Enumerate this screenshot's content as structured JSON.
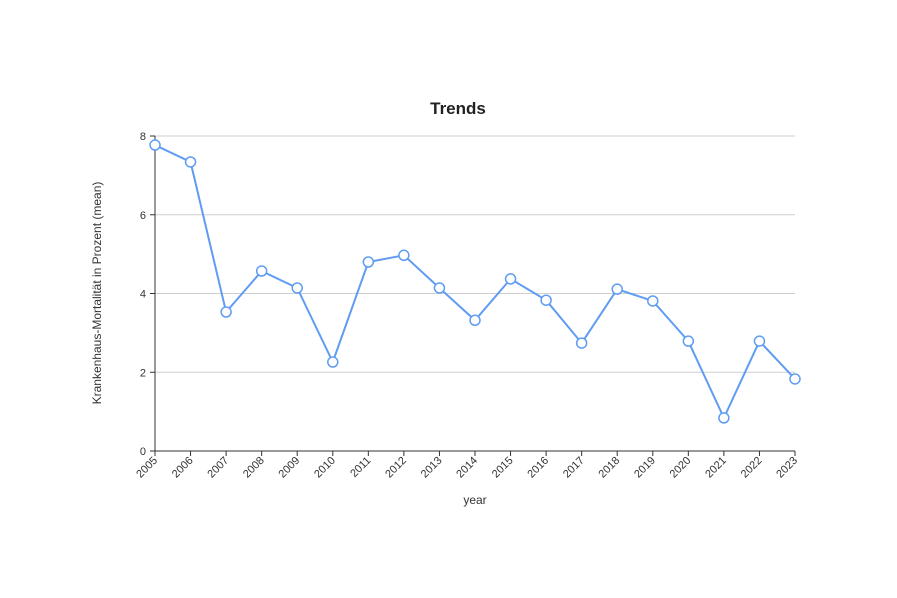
{
  "chart_data": {
    "type": "line",
    "title": "Trends",
    "x_label": "year",
    "y_label": "Krankenhaus-Mortalität in Prozent (mean)",
    "x": [
      2005,
      2006,
      2007,
      2008,
      2009,
      2010,
      2011,
      2012,
      2013,
      2014,
      2015,
      2016,
      2017,
      2018,
      2019,
      2020,
      2021,
      2022,
      2023
    ],
    "series": [
      {
        "name": "Krankenhaus-Mortalität in Prozent (mean)",
        "color": "#5f9cf2",
        "values": [
          7.77,
          7.34,
          3.53,
          4.57,
          4.14,
          2.26,
          4.8,
          4.97,
          4.14,
          3.32,
          4.37,
          3.83,
          2.74,
          4.11,
          3.81,
          2.79,
          0.84,
          2.79,
          1.83
        ]
      }
    ],
    "xlim": [
      2005,
      2023
    ],
    "xticks": [
      2005,
      2006,
      2007,
      2008,
      2009,
      2010,
      2011,
      2012,
      2013,
      2014,
      2015,
      2016,
      2017,
      2018,
      2019,
      2020,
      2021,
      2022,
      2023
    ],
    "ylim": [
      0,
      8
    ],
    "yticks": [
      0,
      2,
      4,
      6,
      8
    ],
    "grid": true
  }
}
